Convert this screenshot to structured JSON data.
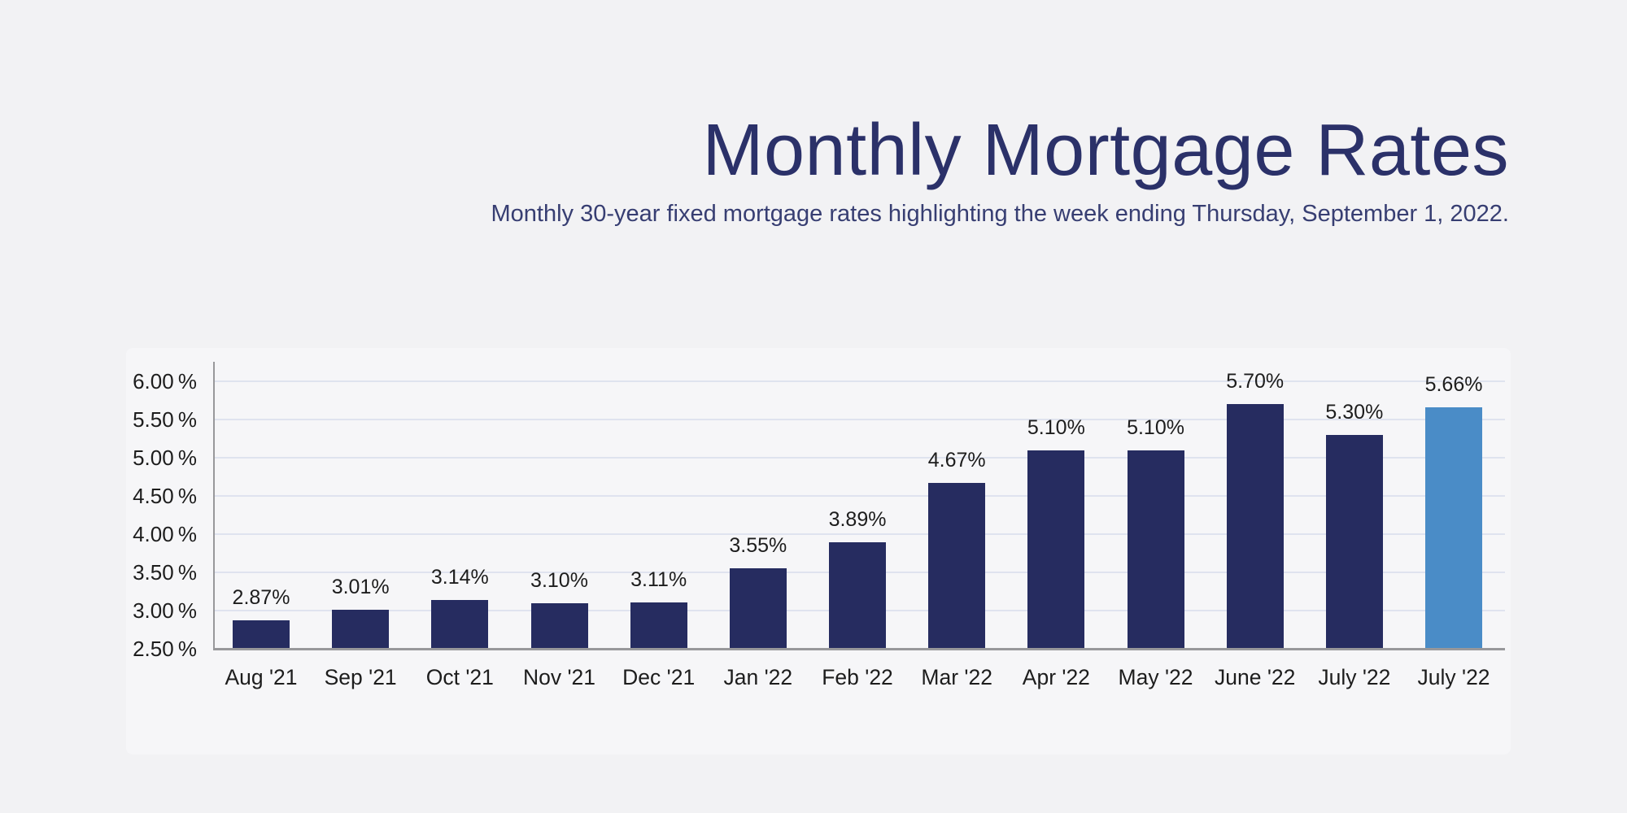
{
  "header": {
    "title": "Monthly Mortgage Rates",
    "subtitle": "Monthly 30-year fixed mortgage rates highlighting the week ending Thursday, September 1, 2022."
  },
  "chart_data": {
    "type": "bar",
    "title": "Monthly Mortgage Rates",
    "subtitle": "Monthly 30-year fixed mortgage rates highlighting the week ending Thursday, September 1, 2022.",
    "categories": [
      "Aug '21",
      "Sep '21",
      "Oct '21",
      "Nov '21",
      "Dec '21",
      "Jan '22",
      "Feb '22",
      "Mar '22",
      "Apr '22",
      "May '22",
      "June '22",
      "July '22",
      "July '22"
    ],
    "values": [
      2.87,
      3.01,
      3.14,
      3.1,
      3.11,
      3.55,
      3.89,
      4.67,
      5.1,
      5.1,
      5.7,
      5.3,
      5.66
    ],
    "value_labels": [
      "2.87%",
      "3.01%",
      "3.14%",
      "3.10%",
      "3.11%",
      "3.55%",
      "3.89%",
      "4.67%",
      "5.10%",
      "5.10%",
      "5.70%",
      "5.30%",
      "5.66%"
    ],
    "highlight_index": 12,
    "xlabel": "",
    "ylabel": "",
    "ylim": [
      2.5,
      6.0
    ],
    "ytick_values": [
      6.0,
      5.5,
      5.0,
      4.5,
      4.0,
      3.5,
      3.0,
      2.5
    ],
    "ytick_labels": [
      "6.00 %",
      "5.50 %",
      "5.00 %",
      "4.50 %",
      "4.00 %",
      "3.50 %",
      "3.00 %",
      "2.50 %"
    ],
    "grid": true,
    "legend": false,
    "colors": {
      "bar": "#262c60",
      "highlight_bar": "#4a8cc7",
      "gridline": "#dfe3ef",
      "axis": "#98989b",
      "tick_text": "#1d1d1d",
      "value_text": "#1d1d1d",
      "title_text": "#2b3169",
      "subtitle_text": "#373e72",
      "background": "#f2f2f4",
      "panel": "#f6f6f8"
    }
  }
}
